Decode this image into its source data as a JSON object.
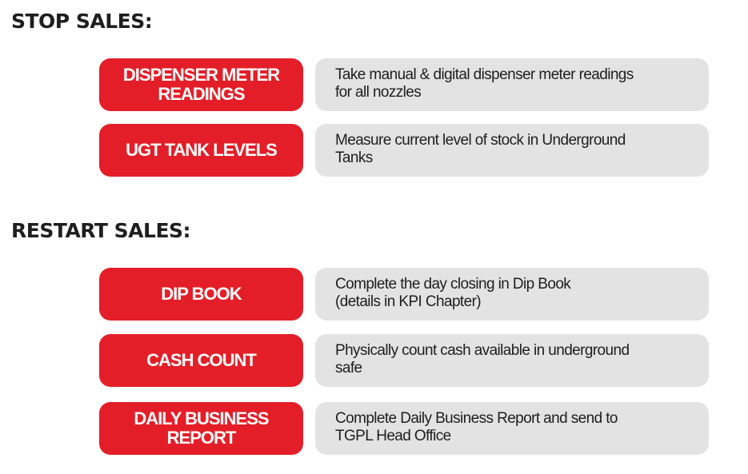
{
  "stop_sales": {
    "heading": "STOP SALES:",
    "items": [
      {
        "label": "DISPENSER METER\nREADINGS",
        "description": "Take manual & digital dispenser meter readings\nfor all nozzles"
      },
      {
        "label": "UGT TANK LEVELS",
        "description": "Measure current level of stock in Underground\nTanks"
      }
    ]
  },
  "restart_sales": {
    "heading": "RESTART SALES:",
    "items": [
      {
        "label": "DIP BOOK",
        "description": "Complete the day closing in Dip Book\n(details in KPI Chapter)"
      },
      {
        "label": "CASH COUNT",
        "description": "Physically count cash available in underground\nsafe"
      },
      {
        "label": "DAILY BUSINESS\nREPORT",
        "description": "Complete Daily Business Report and send to\nTGPL Head Office"
      }
    ]
  },
  "colors": {
    "label_bg": "#e41e28",
    "description_bg": "#e3e3e3",
    "text": "#1e1e1e"
  }
}
